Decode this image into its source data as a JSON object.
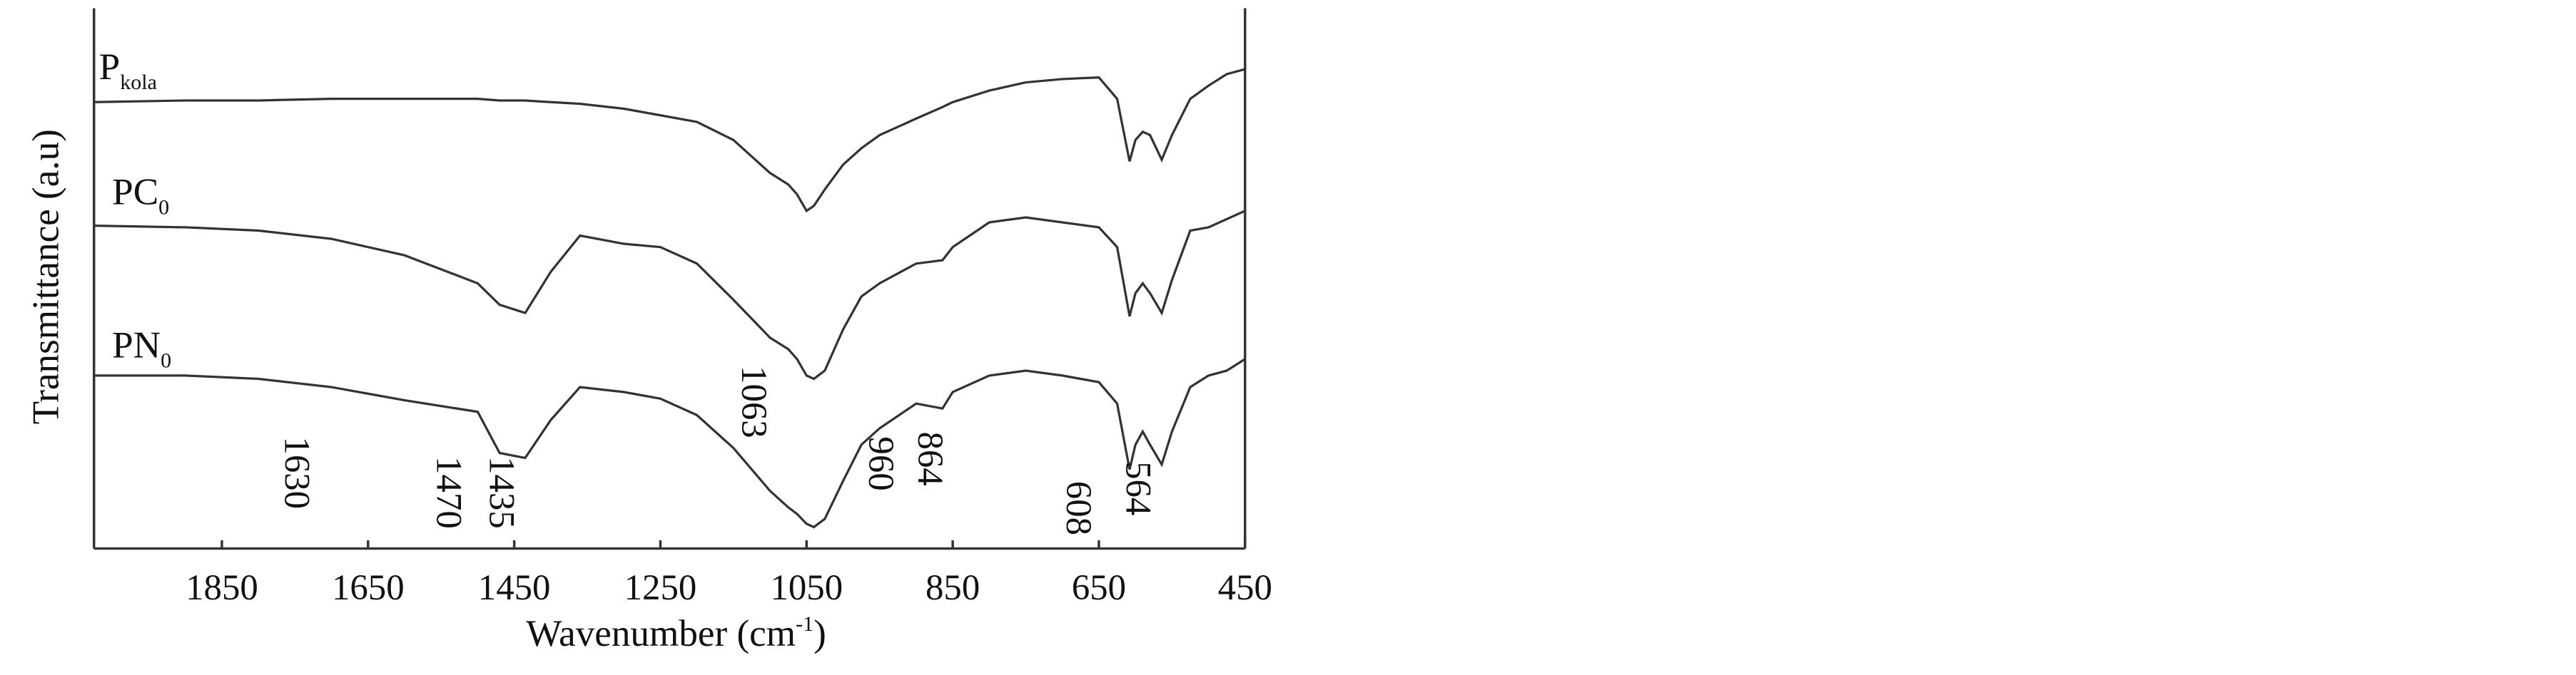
{
  "chart_data": {
    "type": "line",
    "ylabel": "Transmittance (a.u)",
    "xlabel": "Wavenumber (cm",
    "xlabel_sup": "-1",
    "xlabel_end": ")",
    "x": [
      2025,
      1900,
      1800,
      1700,
      1600,
      1500,
      1470,
      1435,
      1400,
      1360,
      1300,
      1250,
      1200,
      1150,
      1100,
      1075,
      1063,
      1050,
      1040,
      1025,
      1000,
      975,
      950,
      900,
      864,
      850,
      800,
      750,
      700,
      650,
      625,
      608,
      600,
      590,
      580,
      564,
      550,
      525,
      500,
      475,
      450
    ],
    "xlim": [
      2025,
      450
    ],
    "xticks": [
      1850,
      1650,
      1450,
      1250,
      1050,
      850,
      650,
      450
    ],
    "ylim": [
      0,
      328
    ],
    "series": [
      {
        "name": "P",
        "sub": "kola",
        "color": "#333333",
        "values": [
          271,
          272,
          272,
          273,
          273,
          273,
          272,
          272,
          271,
          270,
          267,
          263,
          259,
          248,
          228,
          221,
          215,
          205,
          208,
          218,
          233,
          243,
          251,
          261,
          268,
          271,
          278,
          283,
          285,
          286,
          273,
          235,
          248,
          253,
          251,
          236,
          251,
          273,
          281,
          288,
          291
        ]
      },
      {
        "name": "PC",
        "sub": "0",
        "color": "#333333",
        "values": [
          196,
          195,
          193,
          188,
          178,
          161,
          148,
          143,
          168,
          190,
          185,
          183,
          173,
          151,
          128,
          121,
          115,
          105,
          103,
          108,
          133,
          153,
          161,
          173,
          175,
          183,
          198,
          201,
          198,
          195,
          183,
          141,
          155,
          161,
          155,
          143,
          163,
          193,
          195,
          200,
          205
        ]
      },
      {
        "name": "PN",
        "sub": "0",
        "color": "#333333",
        "values": [
          105,
          105,
          103,
          98,
          90,
          83,
          58,
          55,
          78,
          98,
          95,
          91,
          81,
          61,
          35,
          25,
          21,
          15,
          13,
          18,
          41,
          63,
          73,
          88,
          85,
          95,
          105,
          108,
          105,
          101,
          88,
          48,
          63,
          71,
          63,
          51,
          71,
          98,
          105,
          108,
          115
        ]
      }
    ],
    "annotations": [
      "1630",
      "1470",
      "1435",
      "1063",
      "960",
      "864",
      "608",
      "564"
    ]
  }
}
